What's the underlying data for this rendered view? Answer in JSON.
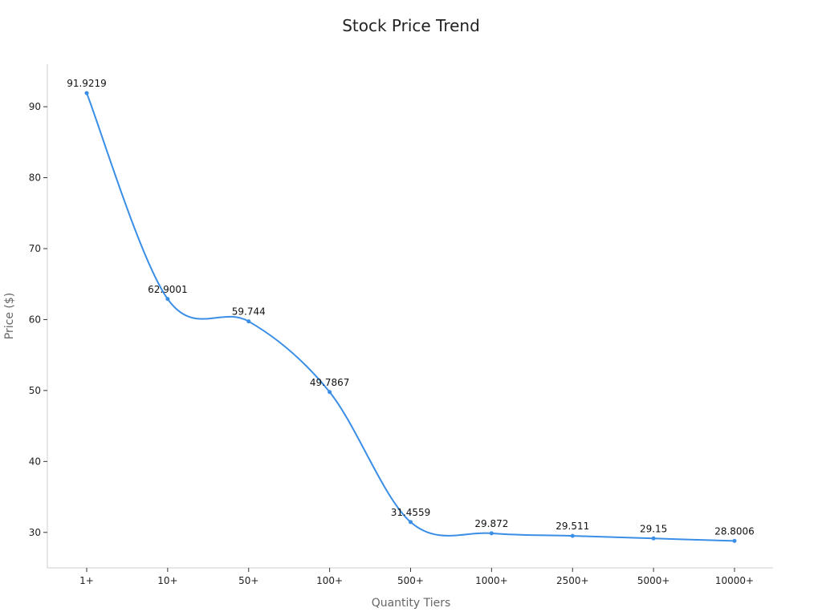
{
  "chart_data": {
    "type": "line",
    "title": "Stock Price Trend",
    "xlabel": "Quantity Tiers",
    "ylabel": "Price ($)",
    "categories": [
      "1+",
      "10+",
      "50+",
      "100+",
      "500+",
      "1000+",
      "2500+",
      "5000+",
      "10000+"
    ],
    "values": [
      91.9219,
      62.9001,
      59.744,
      49.7867,
      31.4559,
      29.872,
      29.511,
      29.15,
      28.8006
    ],
    "data_labels": [
      "91.9219",
      "62.9001",
      "59.744",
      "49.7867",
      "31.4559",
      "29.872",
      "29.511",
      "29.15",
      "28.8006"
    ],
    "ylim": [
      25,
      96
    ],
    "yticks": [
      30,
      40,
      50,
      60,
      70,
      80,
      90
    ],
    "line_color": "#3a8ee6",
    "grid": false,
    "legend": "none"
  }
}
